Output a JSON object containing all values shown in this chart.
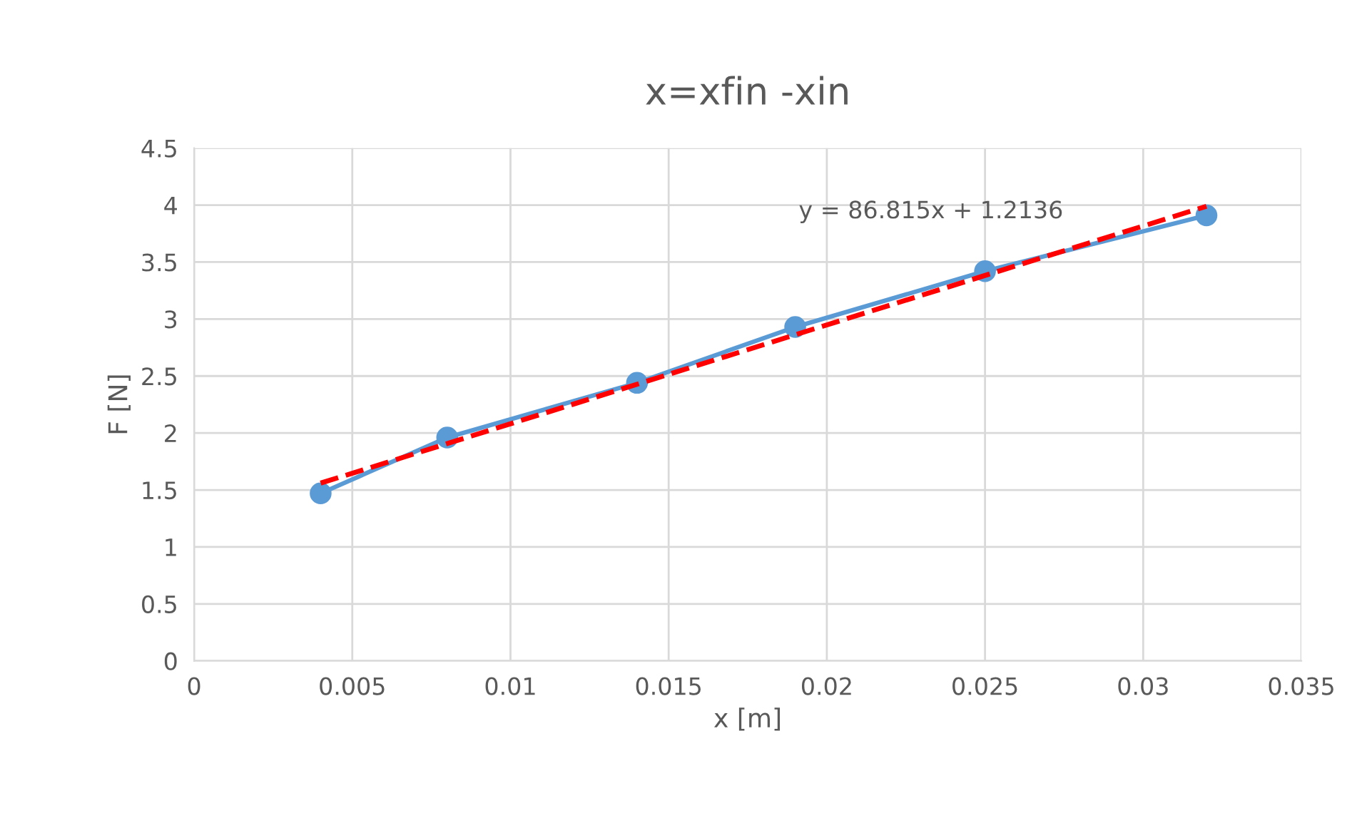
{
  "chart_data": {
    "type": "line",
    "title": "x=xfin -xin",
    "xlabel": "x [m]",
    "ylabel": "F [N]",
    "xlim": [
      0,
      0.035
    ],
    "xticks": [
      0,
      0.005,
      0.01,
      0.015,
      0.02,
      0.025,
      0.03,
      0.035
    ],
    "ylim": [
      0,
      4.5
    ],
    "yticks": [
      0,
      0.5,
      1,
      1.5,
      2,
      2.5,
      3,
      3.5,
      4,
      4.5
    ],
    "grid": true,
    "annotations": [
      "y = 86.815x + 1.2136"
    ],
    "series": [
      {
        "color": "#5b9bd5",
        "marker": "circle",
        "line_style": "solid",
        "x": [
          0.004,
          0.008,
          0.014,
          0.019,
          0.025,
          0.032
        ],
        "values": [
          1.47,
          1.96,
          2.44,
          2.93,
          3.42,
          3.91
        ]
      },
      {
        "color": "#ff0000",
        "marker": "none",
        "line_style": "dashed",
        "x": [
          0.004,
          0.032
        ],
        "values": [
          1.56,
          3.99
        ]
      }
    ]
  }
}
